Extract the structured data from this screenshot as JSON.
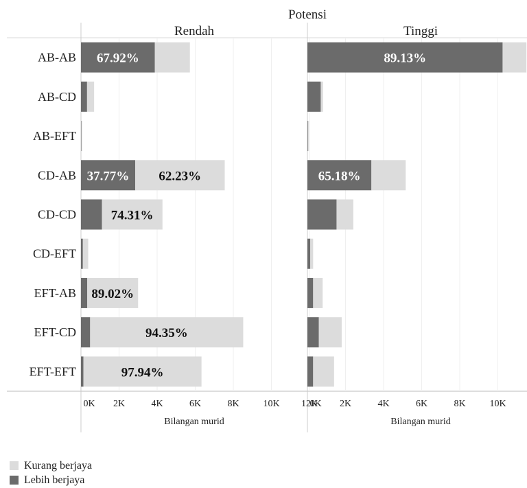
{
  "chart_data": {
    "type": "bar",
    "orientation": "horizontal",
    "stacked": true,
    "title": "Potensi",
    "xlabel": "Bilangan murid",
    "xlim": [
      0,
      12000
    ],
    "x_ticks": [
      "0K",
      "2K",
      "4K",
      "6K",
      "8K",
      "10K",
      "12K"
    ],
    "categories": [
      "AB-AB",
      "AB-CD",
      "AB-EFT",
      "CD-AB",
      "CD-CD",
      "CD-EFT",
      "EFT-AB",
      "EFT-CD",
      "EFT-EFT"
    ],
    "panels": [
      {
        "name": "Rendah",
        "series": [
          {
            "name": "Lebih berjaya",
            "values": [
              3880,
              320,
              20,
              2850,
              1100,
              100,
              330,
              480,
              130
            ]
          },
          {
            "name": "Kurang berjaya",
            "values": [
              1840,
              370,
              40,
              4700,
              3180,
              280,
              2670,
              8040,
              6200
            ]
          }
        ],
        "labels": [
          [
            "67.92%",
            ""
          ],
          [
            "",
            ""
          ],
          [
            "",
            ""
          ],
          [
            "37.77%",
            "62.23%"
          ],
          [
            "",
            "74.31%"
          ],
          [
            "",
            ""
          ],
          [
            "",
            "89.02%"
          ],
          [
            "",
            "94.35%"
          ],
          [
            "",
            "97.94%"
          ]
        ]
      },
      {
        "name": "Tinggi",
        "series": [
          {
            "name": "Lebih berjaya",
            "values": [
              10250,
              700,
              30,
              3360,
              1530,
              150,
              300,
              600,
              300
            ]
          },
          {
            "name": "Kurang berjaya",
            "values": [
              1250,
              120,
              50,
              1800,
              880,
              150,
              500,
              1200,
              1100
            ]
          }
        ],
        "labels": [
          [
            "89.13%",
            ""
          ],
          [
            "",
            ""
          ],
          [
            "",
            ""
          ],
          [
            "65.18%",
            ""
          ],
          [
            "",
            ""
          ],
          [
            "",
            ""
          ],
          [
            "",
            ""
          ],
          [
            "",
            ""
          ],
          [
            "",
            ""
          ]
        ]
      }
    ],
    "legend": {
      "position": "bottom-left",
      "items": [
        {
          "name": "Kurang berjaya",
          "color": "#dcdcdc"
        },
        {
          "name": "Lebih berjaya",
          "color": "#6b6b6b"
        }
      ]
    },
    "colors": {
      "lebih": "#6b6b6b",
      "kurang": "#dcdcdc"
    },
    "grid": true
  }
}
